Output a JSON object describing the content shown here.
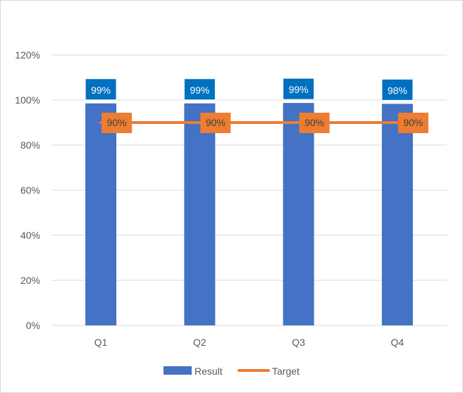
{
  "chart_data": {
    "type": "bar",
    "title": "",
    "xlabel": "",
    "ylabel": "",
    "categories": [
      "Q1",
      "Q2",
      "Q3",
      "Q4"
    ],
    "ylim": [
      0,
      120
    ],
    "yticks": [
      0,
      20,
      40,
      60,
      80,
      100,
      120
    ],
    "y_tick_format": "percent",
    "grid": true,
    "legend_position": "bottom",
    "series": [
      {
        "name": "Result",
        "type": "bar",
        "values": [
          98.5,
          98.5,
          98.7,
          98.3
        ],
        "labels": [
          "99%",
          "99%",
          "99%",
          "98%"
        ],
        "color": "#4472C4",
        "label_text_color": "#ffffff",
        "label_box_color": "#0070C0"
      },
      {
        "name": "Target",
        "type": "line",
        "values": [
          90,
          90,
          90,
          90
        ],
        "labels": [
          "90%",
          "90%",
          "90%",
          "90%"
        ],
        "color": "#ED7D31",
        "label_text_color": "#404040",
        "label_box_color": "#ED7D31"
      }
    ],
    "colors": {
      "gridline": "#d9d9d9",
      "axis_text": "#595959"
    }
  }
}
